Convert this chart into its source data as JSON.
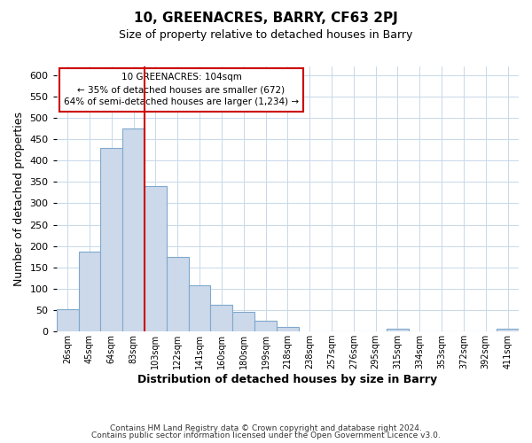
{
  "title": "10, GREENACRES, BARRY, CF63 2PJ",
  "subtitle": "Size of property relative to detached houses in Barry",
  "xlabel": "Distribution of detached houses by size in Barry",
  "ylabel": "Number of detached properties",
  "bar_labels": [
    "26sqm",
    "45sqm",
    "64sqm",
    "83sqm",
    "103sqm",
    "122sqm",
    "141sqm",
    "160sqm",
    "180sqm",
    "199sqm",
    "218sqm",
    "238sqm",
    "257sqm",
    "276sqm",
    "295sqm",
    "315sqm",
    "334sqm",
    "353sqm",
    "372sqm",
    "392sqm",
    "411sqm"
  ],
  "bar_values": [
    53,
    187,
    430,
    475,
    340,
    175,
    108,
    62,
    46,
    25,
    11,
    0,
    0,
    0,
    0,
    6,
    0,
    0,
    0,
    0,
    6
  ],
  "bar_color": "#ccd9eb",
  "bar_edge_color": "#7fa8cc",
  "vline_x": 3.5,
  "vline_color": "#cc0000",
  "annotation_title": "10 GREENACRES: 104sqm",
  "annotation_line1": "← 35% of detached houses are smaller (672)",
  "annotation_line2": "64% of semi-detached houses are larger (1,234) →",
  "box_color": "#cc0000",
  "ylim": [
    0,
    620
  ],
  "yticks": [
    0,
    50,
    100,
    150,
    200,
    250,
    300,
    350,
    400,
    450,
    500,
    550,
    600
  ],
  "footer1": "Contains HM Land Registry data © Crown copyright and database right 2024.",
  "footer2": "Contains public sector information licensed under the Open Government Licence v3.0.",
  "figsize": [
    6.0,
    5.0
  ],
  "dpi": 100
}
